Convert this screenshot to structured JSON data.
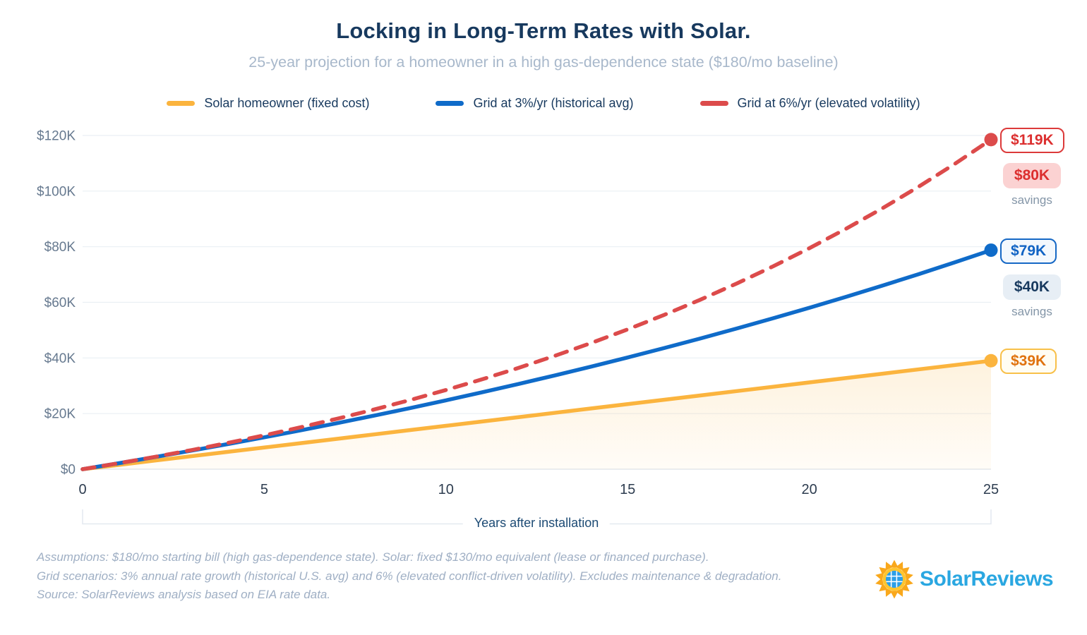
{
  "title": "Locking in Long-Term Rates with Solar.",
  "subtitle": "25-year projection for a homeowner in a high gas-dependence state ($180/mo baseline)",
  "legend": [
    {
      "label": "Solar homeowner (fixed cost)",
      "color": "#FBB43E",
      "style": "solid"
    },
    {
      "label": "Grid at 3%/yr (historical avg)",
      "color": "#0F6BC9",
      "style": "solid"
    },
    {
      "label": "Grid at 6%/yr (elevated volatility)",
      "color": "#DC4B4B",
      "style": "dashed"
    }
  ],
  "chart_data": {
    "type": "line",
    "title": "Locking in Long-Term Rates with Solar.",
    "xlabel": "Years after installation",
    "ylabel": "",
    "xlim": [
      0,
      25
    ],
    "ylim": [
      0,
      120000
    ],
    "grid": true,
    "x_ticks": [
      0,
      5,
      10,
      15,
      20,
      25
    ],
    "y_ticks": [
      "$0",
      "$20K",
      "$40K",
      "$60K",
      "$80K",
      "$100K",
      "$120K"
    ],
    "x": [
      0,
      1,
      2,
      3,
      4,
      5,
      6,
      7,
      8,
      9,
      10,
      11,
      12,
      13,
      14,
      15,
      16,
      17,
      18,
      19,
      20,
      21,
      22,
      23,
      24,
      25
    ],
    "series": [
      {
        "name": "Solar homeowner (fixed cost)",
        "color": "#FBB43E",
        "dash": false,
        "area": true,
        "values": [
          0,
          1560,
          3120,
          4680,
          6240,
          7800,
          9360,
          10920,
          12480,
          14040,
          15600,
          17160,
          18720,
          20280,
          21840,
          23400,
          24960,
          26520,
          28080,
          29640,
          31200,
          32760,
          34320,
          35880,
          37440,
          39000
        ]
      },
      {
        "name": "Grid at 3%/yr (historical avg)",
        "color": "#0F6BC9",
        "dash": false,
        "area": false,
        "values": [
          0,
          2160,
          4385,
          6676,
          9037,
          11468,
          13972,
          16551,
          19207,
          21944,
          24762,
          27665,
          30655,
          33734,
          36906,
          40174,
          43539,
          47005,
          50575,
          54252,
          58040,
          61941,
          65959,
          70098,
          74361,
          78752
        ]
      },
      {
        "name": "Grid at 6%/yr (elevated volatility)",
        "color": "#DC4B4B",
        "dash": true,
        "area": false,
        "values": [
          0,
          2160,
          4450,
          6877,
          9449,
          12176,
          15067,
          18131,
          21379,
          24821,
          28471,
          32339,
          36439,
          40785,
          45393,
          50276,
          55453,
          60940,
          66756,
          72922,
          79457,
          86384,
          93727,
          101511,
          109762,
          118507
        ]
      }
    ],
    "legend_position": "top"
  },
  "annotations": {
    "grid6_end": "$119K",
    "grid6_savings": "$80K",
    "grid6_savings_caption": "savings",
    "grid3_end": "$79K",
    "grid3_savings": "$40K",
    "grid3_savings_caption": "savings",
    "solar_end": "$39K"
  },
  "footnotes": [
    "Assumptions: $180/mo starting bill (high gas-dependence state). Solar: fixed $130/mo equivalent (lease or financed purchase).",
    "Grid scenarios: 3% annual rate growth (historical U.S. avg) and 6% (elevated conflict-driven volatility). Excludes maintenance & degradation.",
    "Source: SolarReviews analysis based on EIA rate data."
  ],
  "logo": {
    "text": "SolarReviews"
  },
  "colors": {
    "navy": "#17395E",
    "yellow": "#FBB43E",
    "blue": "#0F6BC9",
    "red": "#DC4B4B",
    "red_text": "#DC2F2F",
    "red_badge_bg": "#FBD2D2",
    "blue_badge_bg": "#E7EEF5",
    "yellow_text": "#E0720D",
    "grid_line": "#EAEFF4",
    "logo_blue": "#2AA7E1"
  }
}
